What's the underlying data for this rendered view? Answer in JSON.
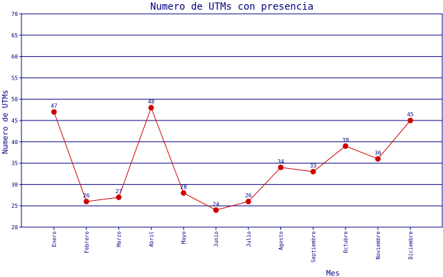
{
  "chart_data": {
    "type": "line",
    "title": "Numero de UTMs con presencia",
    "xlabel": "Mes",
    "ylabel": "Numero de UTMs",
    "ylim": [
      20,
      70
    ],
    "yticks": [
      20,
      25,
      30,
      35,
      40,
      45,
      50,
      55,
      60,
      65,
      70
    ],
    "grid": true,
    "categories": [
      "Enero",
      "Febrero",
      "Marzo",
      "Abril",
      "Mayo",
      "Junio",
      "Julio",
      "Agosto",
      "Septiembre",
      "Octubre",
      "Noviembre",
      "Diciembre"
    ],
    "series": [
      {
        "values": [
          47,
          26,
          27,
          48,
          28,
          24,
          26,
          34,
          33,
          39,
          36,
          45
        ]
      }
    ],
    "colors": {
      "line": "#cc0000",
      "marker": "#cc0000",
      "grid": "#000080",
      "text": "#000080"
    }
  }
}
